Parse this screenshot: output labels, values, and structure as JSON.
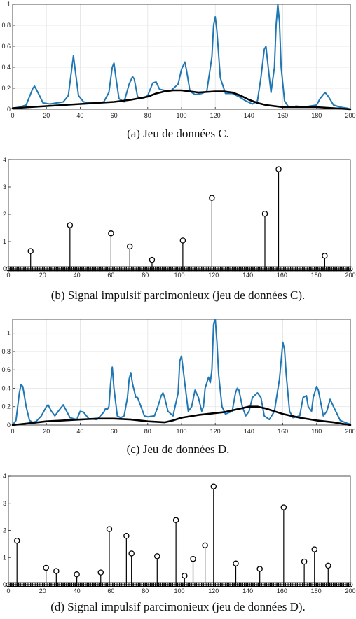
{
  "chart_data": [
    {
      "type": "line",
      "caption": "(a) Jeu de données C.",
      "xlim": [
        0,
        200
      ],
      "ylim": [
        0,
        1
      ],
      "xticks": [
        0,
        20,
        40,
        60,
        80,
        100,
        120,
        140,
        160,
        180,
        200
      ],
      "yticks": [
        0,
        0.2,
        0.4,
        0.6,
        0.8,
        1
      ],
      "ytick_labels": [
        "0",
        "0.2",
        "0.4",
        "0.6",
        "0.8",
        "1"
      ],
      "grid": true,
      "colors": {
        "signal": "#1f77b4",
        "baseline": "#000000"
      },
      "series": [
        {
          "values_x": [
            0,
            4,
            8,
            10,
            12,
            13,
            15,
            18,
            22,
            26,
            30,
            33,
            35,
            36,
            37,
            39,
            42,
            46,
            50,
            54,
            57,
            59,
            60,
            61,
            63,
            66,
            69,
            71,
            72,
            74,
            77,
            80,
            83,
            85,
            87,
            90,
            94,
            98,
            100,
            102,
            103,
            105,
            108,
            112,
            115,
            118,
            119,
            120,
            121,
            123,
            126,
            130,
            134,
            138,
            142,
            145,
            147,
            149,
            150,
            151,
            153,
            155,
            156,
            157,
            158,
            159,
            161,
            163,
            165,
            168,
            172,
            176,
            180,
            182,
            184,
            185,
            187,
            190,
            194,
            198,
            200
          ],
          "values_y": [
            0.01,
            0.02,
            0.04,
            0.12,
            0.2,
            0.22,
            0.16,
            0.06,
            0.05,
            0.06,
            0.07,
            0.13,
            0.38,
            0.51,
            0.38,
            0.13,
            0.07,
            0.06,
            0.06,
            0.07,
            0.16,
            0.4,
            0.44,
            0.32,
            0.1,
            0.07,
            0.24,
            0.31,
            0.29,
            0.12,
            0.1,
            0.13,
            0.25,
            0.26,
            0.19,
            0.18,
            0.18,
            0.24,
            0.38,
            0.45,
            0.37,
            0.17,
            0.14,
            0.15,
            0.17,
            0.5,
            0.8,
            0.88,
            0.74,
            0.3,
            0.15,
            0.15,
            0.12,
            0.08,
            0.05,
            0.08,
            0.3,
            0.57,
            0.6,
            0.45,
            0.16,
            0.4,
            0.8,
            1.0,
            0.83,
            0.4,
            0.08,
            0.03,
            0.02,
            0.03,
            0.02,
            0.03,
            0.04,
            0.1,
            0.14,
            0.16,
            0.12,
            0.04,
            0.02,
            0.01,
            0.0
          ]
        },
        {
          "values_x": [
            0,
            10,
            20,
            30,
            40,
            50,
            60,
            70,
            80,
            85,
            90,
            95,
            100,
            110,
            120,
            125,
            130,
            135,
            140,
            145,
            150,
            160,
            170,
            180,
            190,
            200
          ],
          "values_y": [
            0.01,
            0.02,
            0.03,
            0.04,
            0.05,
            0.06,
            0.07,
            0.09,
            0.12,
            0.15,
            0.17,
            0.18,
            0.18,
            0.16,
            0.17,
            0.17,
            0.16,
            0.13,
            0.09,
            0.06,
            0.04,
            0.02,
            0.02,
            0.02,
            0.01,
            0.0
          ]
        }
      ]
    },
    {
      "type": "stem",
      "caption": "(b) Signal impulsif parcimonieux (jeu de données C).",
      "xlim": [
        0,
        200
      ],
      "ylim": [
        0,
        4
      ],
      "xticks": [
        0,
        20,
        40,
        60,
        80,
        100,
        120,
        140,
        160,
        180,
        200
      ],
      "yticks": [
        0,
        1,
        2,
        3,
        4
      ],
      "ytick_labels": [
        "0",
        "1",
        "2",
        "3",
        "4"
      ],
      "grid": false,
      "zero_markers": true,
      "x": [
        13,
        36,
        60,
        71,
        84,
        102,
        119,
        150,
        158,
        185
      ],
      "values": [
        0.65,
        1.6,
        1.3,
        0.82,
        0.33,
        1.04,
        2.6,
        2.02,
        3.65,
        0.48
      ]
    },
    {
      "type": "line",
      "caption": "(c) Jeu de données D.",
      "xlim": [
        0,
        200
      ],
      "ylim": [
        0,
        1.15
      ],
      "xticks": [
        0,
        20,
        40,
        60,
        80,
        100,
        120,
        140,
        160,
        180,
        200
      ],
      "yticks": [
        0,
        0.2,
        0.4,
        0.6,
        0.8,
        1
      ],
      "ytick_labels": [
        "0",
        "0.2",
        "0.4",
        "0.6",
        "0.8",
        "1"
      ],
      "grid": true,
      "colors": {
        "signal": "#1f77b4",
        "baseline": "#000000"
      },
      "series": [
        {
          "values_x": [
            0,
            2,
            4,
            5,
            6,
            8,
            10,
            12,
            14,
            17,
            20,
            21,
            23,
            25,
            27,
            30,
            34,
            38,
            40,
            42,
            45,
            50,
            54,
            55,
            56,
            57,
            58,
            59,
            60,
            62,
            64,
            66,
            68,
            69,
            70,
            71,
            73,
            74,
            76,
            78,
            80,
            84,
            86,
            88,
            89,
            90,
            92,
            95,
            98,
            99,
            100,
            102,
            104,
            106,
            108,
            110,
            112,
            113,
            114,
            116,
            117,
            118,
            119,
            120,
            121,
            122,
            124,
            126,
            130,
            132,
            133,
            134,
            136,
            138,
            140,
            142,
            145,
            147,
            148,
            149,
            152,
            155,
            158,
            160,
            161,
            162,
            164,
            166,
            170,
            172,
            174,
            175,
            177,
            178,
            180,
            181,
            184,
            186,
            188,
            190,
            194,
            198,
            200
          ],
          "values_y": [
            0.0,
            0.05,
            0.35,
            0.44,
            0.42,
            0.2,
            0.05,
            0.03,
            0.04,
            0.1,
            0.2,
            0.22,
            0.15,
            0.1,
            0.15,
            0.22,
            0.08,
            0.06,
            0.15,
            0.14,
            0.07,
            0.06,
            0.14,
            0.18,
            0.17,
            0.2,
            0.45,
            0.63,
            0.4,
            0.1,
            0.08,
            0.1,
            0.3,
            0.5,
            0.57,
            0.45,
            0.3,
            0.3,
            0.2,
            0.1,
            0.09,
            0.1,
            0.2,
            0.32,
            0.35,
            0.3,
            0.15,
            0.1,
            0.35,
            0.7,
            0.75,
            0.45,
            0.15,
            0.2,
            0.38,
            0.3,
            0.15,
            0.2,
            0.4,
            0.52,
            0.46,
            0.6,
            1.1,
            1.15,
            0.9,
            0.55,
            0.2,
            0.12,
            0.15,
            0.35,
            0.4,
            0.38,
            0.2,
            0.1,
            0.15,
            0.3,
            0.35,
            0.3,
            0.2,
            0.1,
            0.06,
            0.15,
            0.5,
            0.9,
            0.82,
            0.55,
            0.15,
            0.08,
            0.1,
            0.3,
            0.32,
            0.2,
            0.15,
            0.3,
            0.42,
            0.38,
            0.1,
            0.15,
            0.28,
            0.2,
            0.05,
            0.02,
            0.01
          ]
        },
        {
          "values_x": [
            0,
            10,
            20,
            30,
            40,
            50,
            60,
            70,
            80,
            90,
            95,
            100,
            110,
            120,
            125,
            130,
            135,
            140,
            145,
            150,
            155,
            160,
            170,
            180,
            190,
            200
          ],
          "values_y": [
            0.0,
            0.02,
            0.04,
            0.05,
            0.06,
            0.07,
            0.07,
            0.06,
            0.04,
            0.03,
            0.05,
            0.08,
            0.11,
            0.13,
            0.14,
            0.16,
            0.18,
            0.2,
            0.2,
            0.18,
            0.15,
            0.12,
            0.08,
            0.05,
            0.03,
            0.0
          ]
        }
      ]
    },
    {
      "type": "stem",
      "caption": "(d) Signal impulsif parcimonieux (jeu de données D).",
      "xlim": [
        0,
        200
      ],
      "ylim": [
        0,
        4
      ],
      "xticks": [
        0,
        20,
        40,
        60,
        80,
        100,
        120,
        140,
        160,
        180,
        200
      ],
      "yticks": [
        0,
        1,
        2,
        3,
        4
      ],
      "ytick_labels": [
        "0",
        "1",
        "2",
        "3",
        "4"
      ],
      "grid": false,
      "zero_markers": true,
      "x": [
        5,
        22,
        28,
        40,
        54,
        59,
        69,
        72,
        87,
        98,
        103,
        108,
        115,
        120,
        133,
        147,
        161,
        173,
        179,
        187
      ],
      "values": [
        1.62,
        0.62,
        0.5,
        0.38,
        0.45,
        2.05,
        1.8,
        1.15,
        1.05,
        2.38,
        0.33,
        0.95,
        1.45,
        3.62,
        0.78,
        0.58,
        2.85,
        0.85,
        1.3,
        0.7
      ]
    }
  ]
}
